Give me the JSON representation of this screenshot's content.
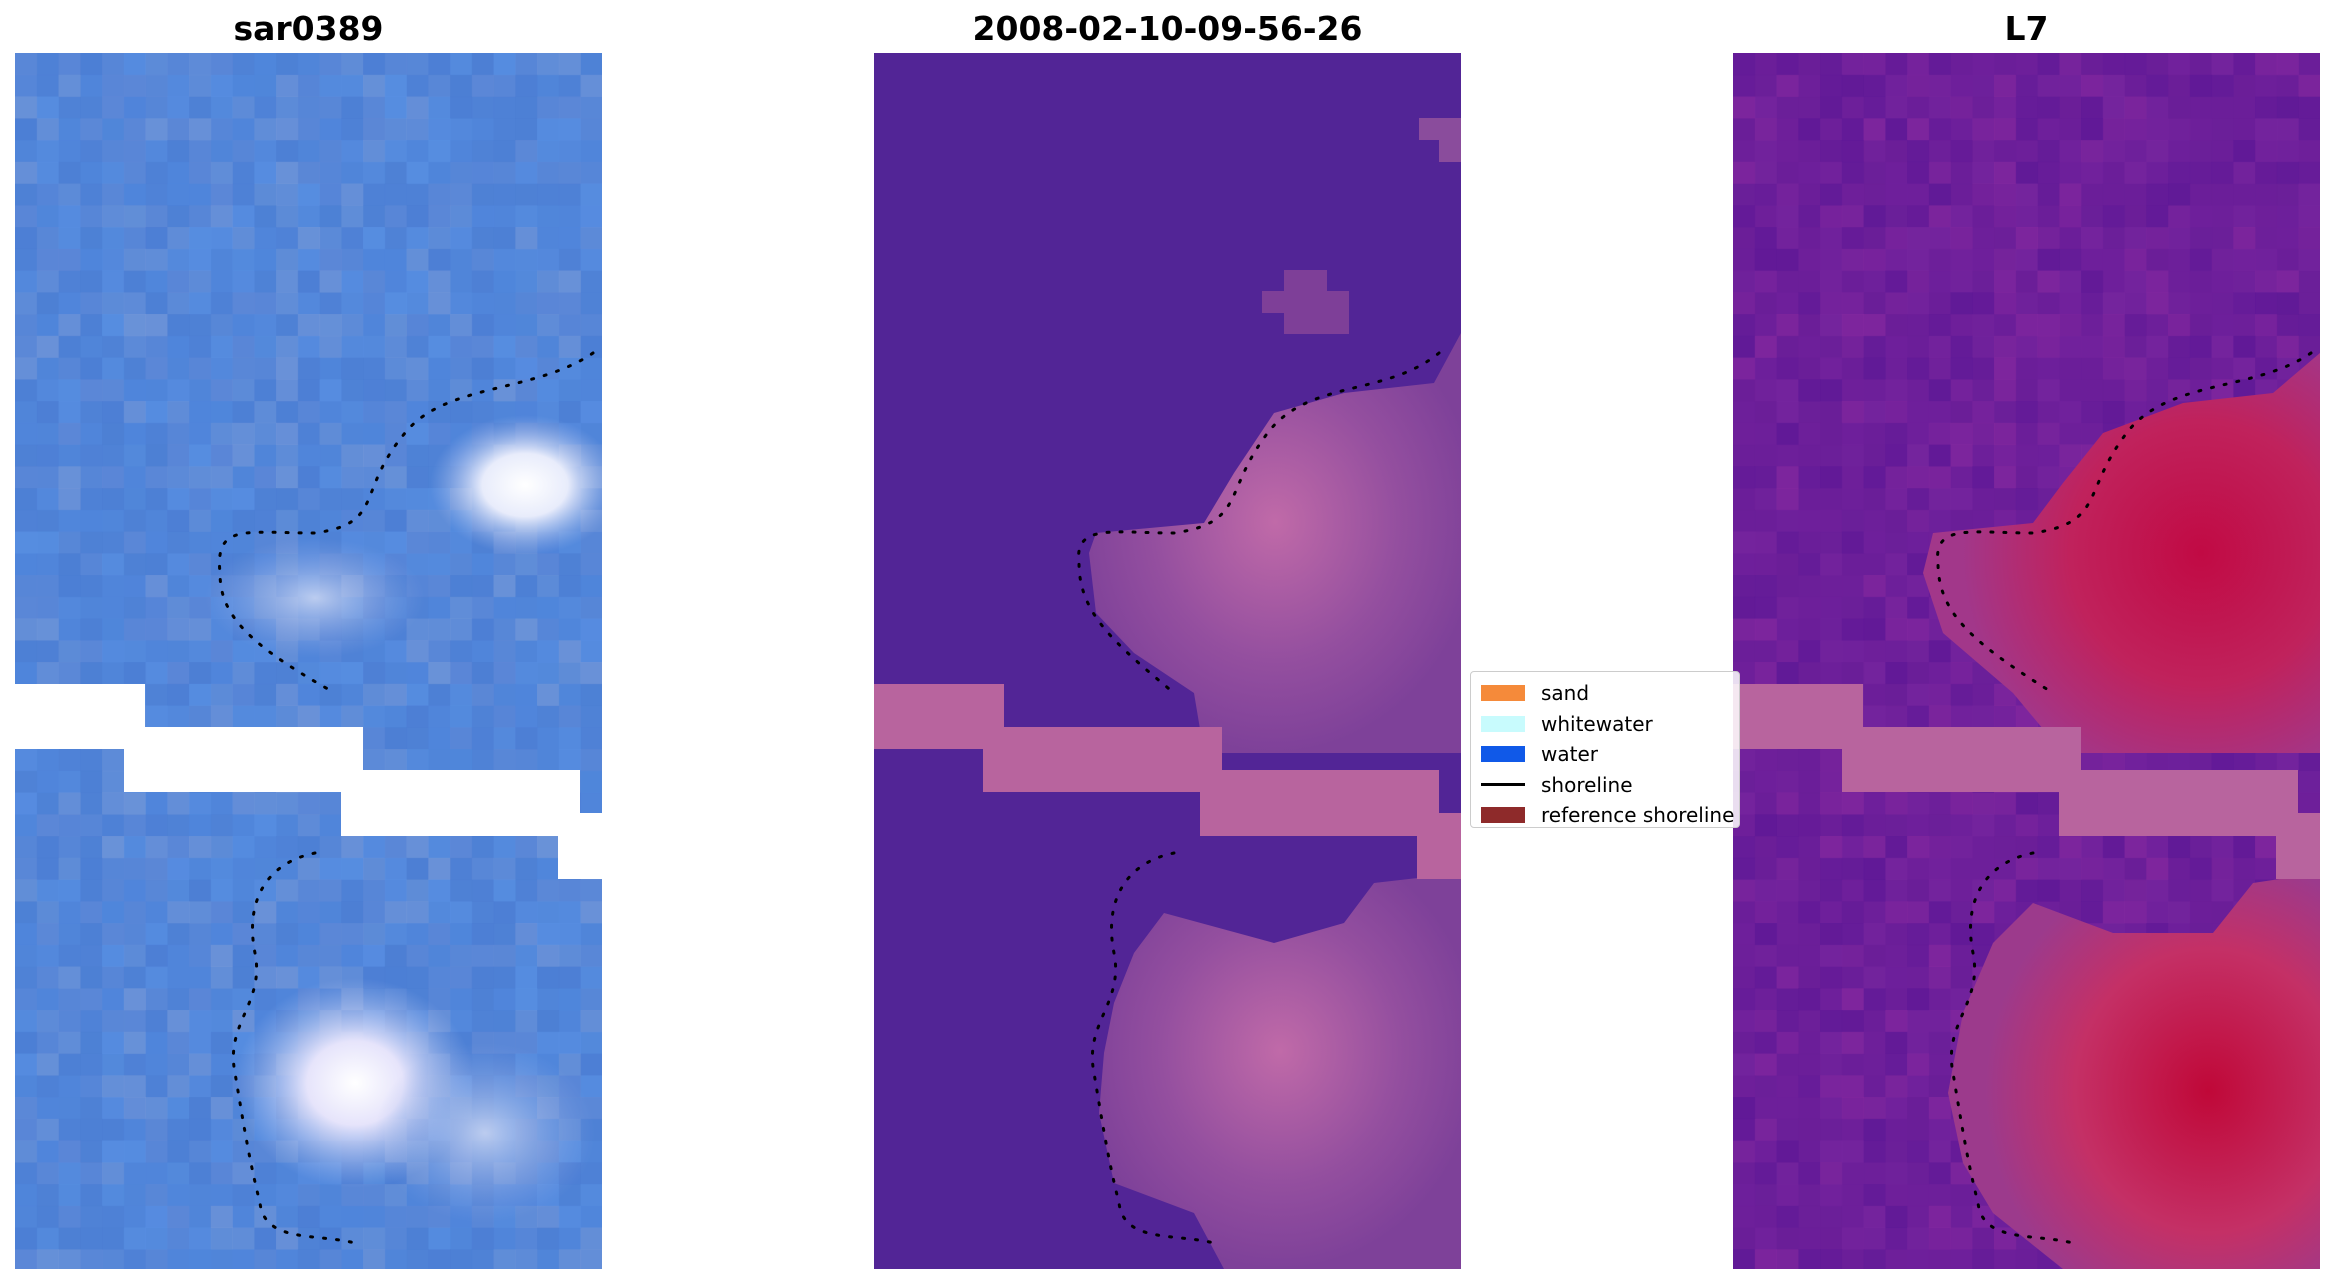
{
  "panels": [
    {
      "title": "sar0389",
      "colors": {
        "base": "#4f82d8",
        "alt": "#5b90e4",
        "bright": "#ffffff",
        "haze": "#c7d4f2"
      }
    },
    {
      "title": "2008-02-10-09-56-26",
      "colors": {
        "base": "#522596",
        "land": "#8a4c9c",
        "strip": "#b8649e"
      }
    },
    {
      "title": "L7",
      "colors": {
        "base": "#6c1f9a",
        "land": "#b0246a",
        "hot": "#c10a44",
        "strip": "#b8649e"
      }
    }
  ],
  "legend": {
    "items": [
      {
        "label": "sand",
        "color": "#f58a3a",
        "kind": "patch"
      },
      {
        "label": "whitewater",
        "color": "#c8fbfd",
        "kind": "patch"
      },
      {
        "label": "water",
        "color": "#1059e8",
        "kind": "patch"
      },
      {
        "label": "shoreline",
        "color": "#000000",
        "kind": "line"
      },
      {
        "label": "reference shoreline",
        "color": "#8e2a2a",
        "kind": "patch"
      }
    ]
  }
}
